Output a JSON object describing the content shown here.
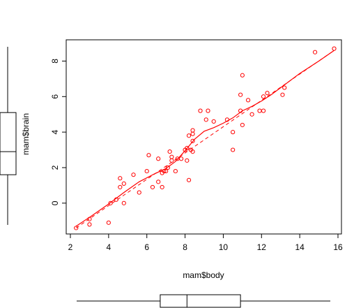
{
  "chart_data": {
    "type": "scatter",
    "xlabel": "mam$body",
    "ylabel": "mam$brain",
    "xlim": [
      2,
      16
    ],
    "ylim": [
      -1.5,
      9
    ],
    "x_ticks": [
      "2",
      "4",
      "6",
      "8",
      "10",
      "12",
      "14",
      "16"
    ],
    "y_ticks": [
      "0",
      "2",
      "4",
      "6",
      "8"
    ],
    "point_color": "#ff0000",
    "points": [
      [
        2.3,
        -1.4
      ],
      [
        3.0,
        -1.2
      ],
      [
        3.0,
        -0.9
      ],
      [
        4.0,
        -1.1
      ],
      [
        4.1,
        0.0
      ],
      [
        4.4,
        0.2
      ],
      [
        4.6,
        0.9
      ],
      [
        4.6,
        1.4
      ],
      [
        4.8,
        1.1
      ],
      [
        4.8,
        0.0
      ],
      [
        5.3,
        1.6
      ],
      [
        5.6,
        0.6
      ],
      [
        6.0,
        1.8
      ],
      [
        6.1,
        2.7
      ],
      [
        6.3,
        0.9
      ],
      [
        6.6,
        1.2
      ],
      [
        6.6,
        2.5
      ],
      [
        6.8,
        1.7
      ],
      [
        6.8,
        0.9
      ],
      [
        6.9,
        1.8
      ],
      [
        7.0,
        1.8
      ],
      [
        7.1,
        2.0
      ],
      [
        7.2,
        2.9
      ],
      [
        7.3,
        2.4
      ],
      [
        7.3,
        2.6
      ],
      [
        7.5,
        1.8
      ],
      [
        7.6,
        2.5
      ],
      [
        7.8,
        2.5
      ],
      [
        8.0,
        3.0
      ],
      [
        8.1,
        3.1
      ],
      [
        8.1,
        2.4
      ],
      [
        8.2,
        3.8
      ],
      [
        8.2,
        1.3
      ],
      [
        8.3,
        3.0
      ],
      [
        8.4,
        3.5
      ],
      [
        8.4,
        3.9
      ],
      [
        8.4,
        4.1
      ],
      [
        8.4,
        2.9
      ],
      [
        8.8,
        5.2
      ],
      [
        9.1,
        4.7
      ],
      [
        9.2,
        5.2
      ],
      [
        9.5,
        4.6
      ],
      [
        10.2,
        4.7
      ],
      [
        10.5,
        4.0
      ],
      [
        10.5,
        3.0
      ],
      [
        10.9,
        5.2
      ],
      [
        10.9,
        6.1
      ],
      [
        11.0,
        7.2
      ],
      [
        11.0,
        4.4
      ],
      [
        11.3,
        5.8
      ],
      [
        11.5,
        5.0
      ],
      [
        11.9,
        5.2
      ],
      [
        12.1,
        5.2
      ],
      [
        12.1,
        6.0
      ],
      [
        12.3,
        6.2
      ],
      [
        13.1,
        6.1
      ],
      [
        13.2,
        6.5
      ],
      [
        14.8,
        8.5
      ],
      [
        15.8,
        8.7
      ]
    ],
    "smooth_line": [
      [
        2.3,
        -1.3
      ],
      [
        3.0,
        -0.8
      ],
      [
        4.0,
        -0.05
      ],
      [
        4.8,
        0.6
      ],
      [
        5.6,
        1.2
      ],
      [
        6.4,
        1.65
      ],
      [
        7.0,
        1.95
      ],
      [
        7.5,
        2.35
      ],
      [
        8.0,
        2.95
      ],
      [
        8.5,
        3.6
      ],
      [
        9.0,
        4.05
      ],
      [
        9.5,
        4.25
      ],
      [
        10.0,
        4.5
      ],
      [
        10.5,
        4.8
      ],
      [
        11.0,
        5.2
      ],
      [
        11.5,
        5.45
      ],
      [
        12.0,
        5.75
      ],
      [
        12.5,
        6.1
      ],
      [
        13.0,
        6.5
      ],
      [
        14.0,
        7.3
      ],
      [
        15.0,
        8.0
      ],
      [
        15.8,
        8.6
      ]
    ],
    "regression_line": [
      [
        2.3,
        -1.4
      ],
      [
        15.8,
        8.6
      ]
    ],
    "x_boxplot": {
      "min": 2.3,
      "q1": 6.7,
      "median": 8.1,
      "q3": 10.9,
      "max": 15.8
    },
    "y_boxplot": {
      "min": -1.4,
      "q1": 1.6,
      "median": 2.9,
      "q3": 5.1,
      "max": 8.7
    }
  }
}
